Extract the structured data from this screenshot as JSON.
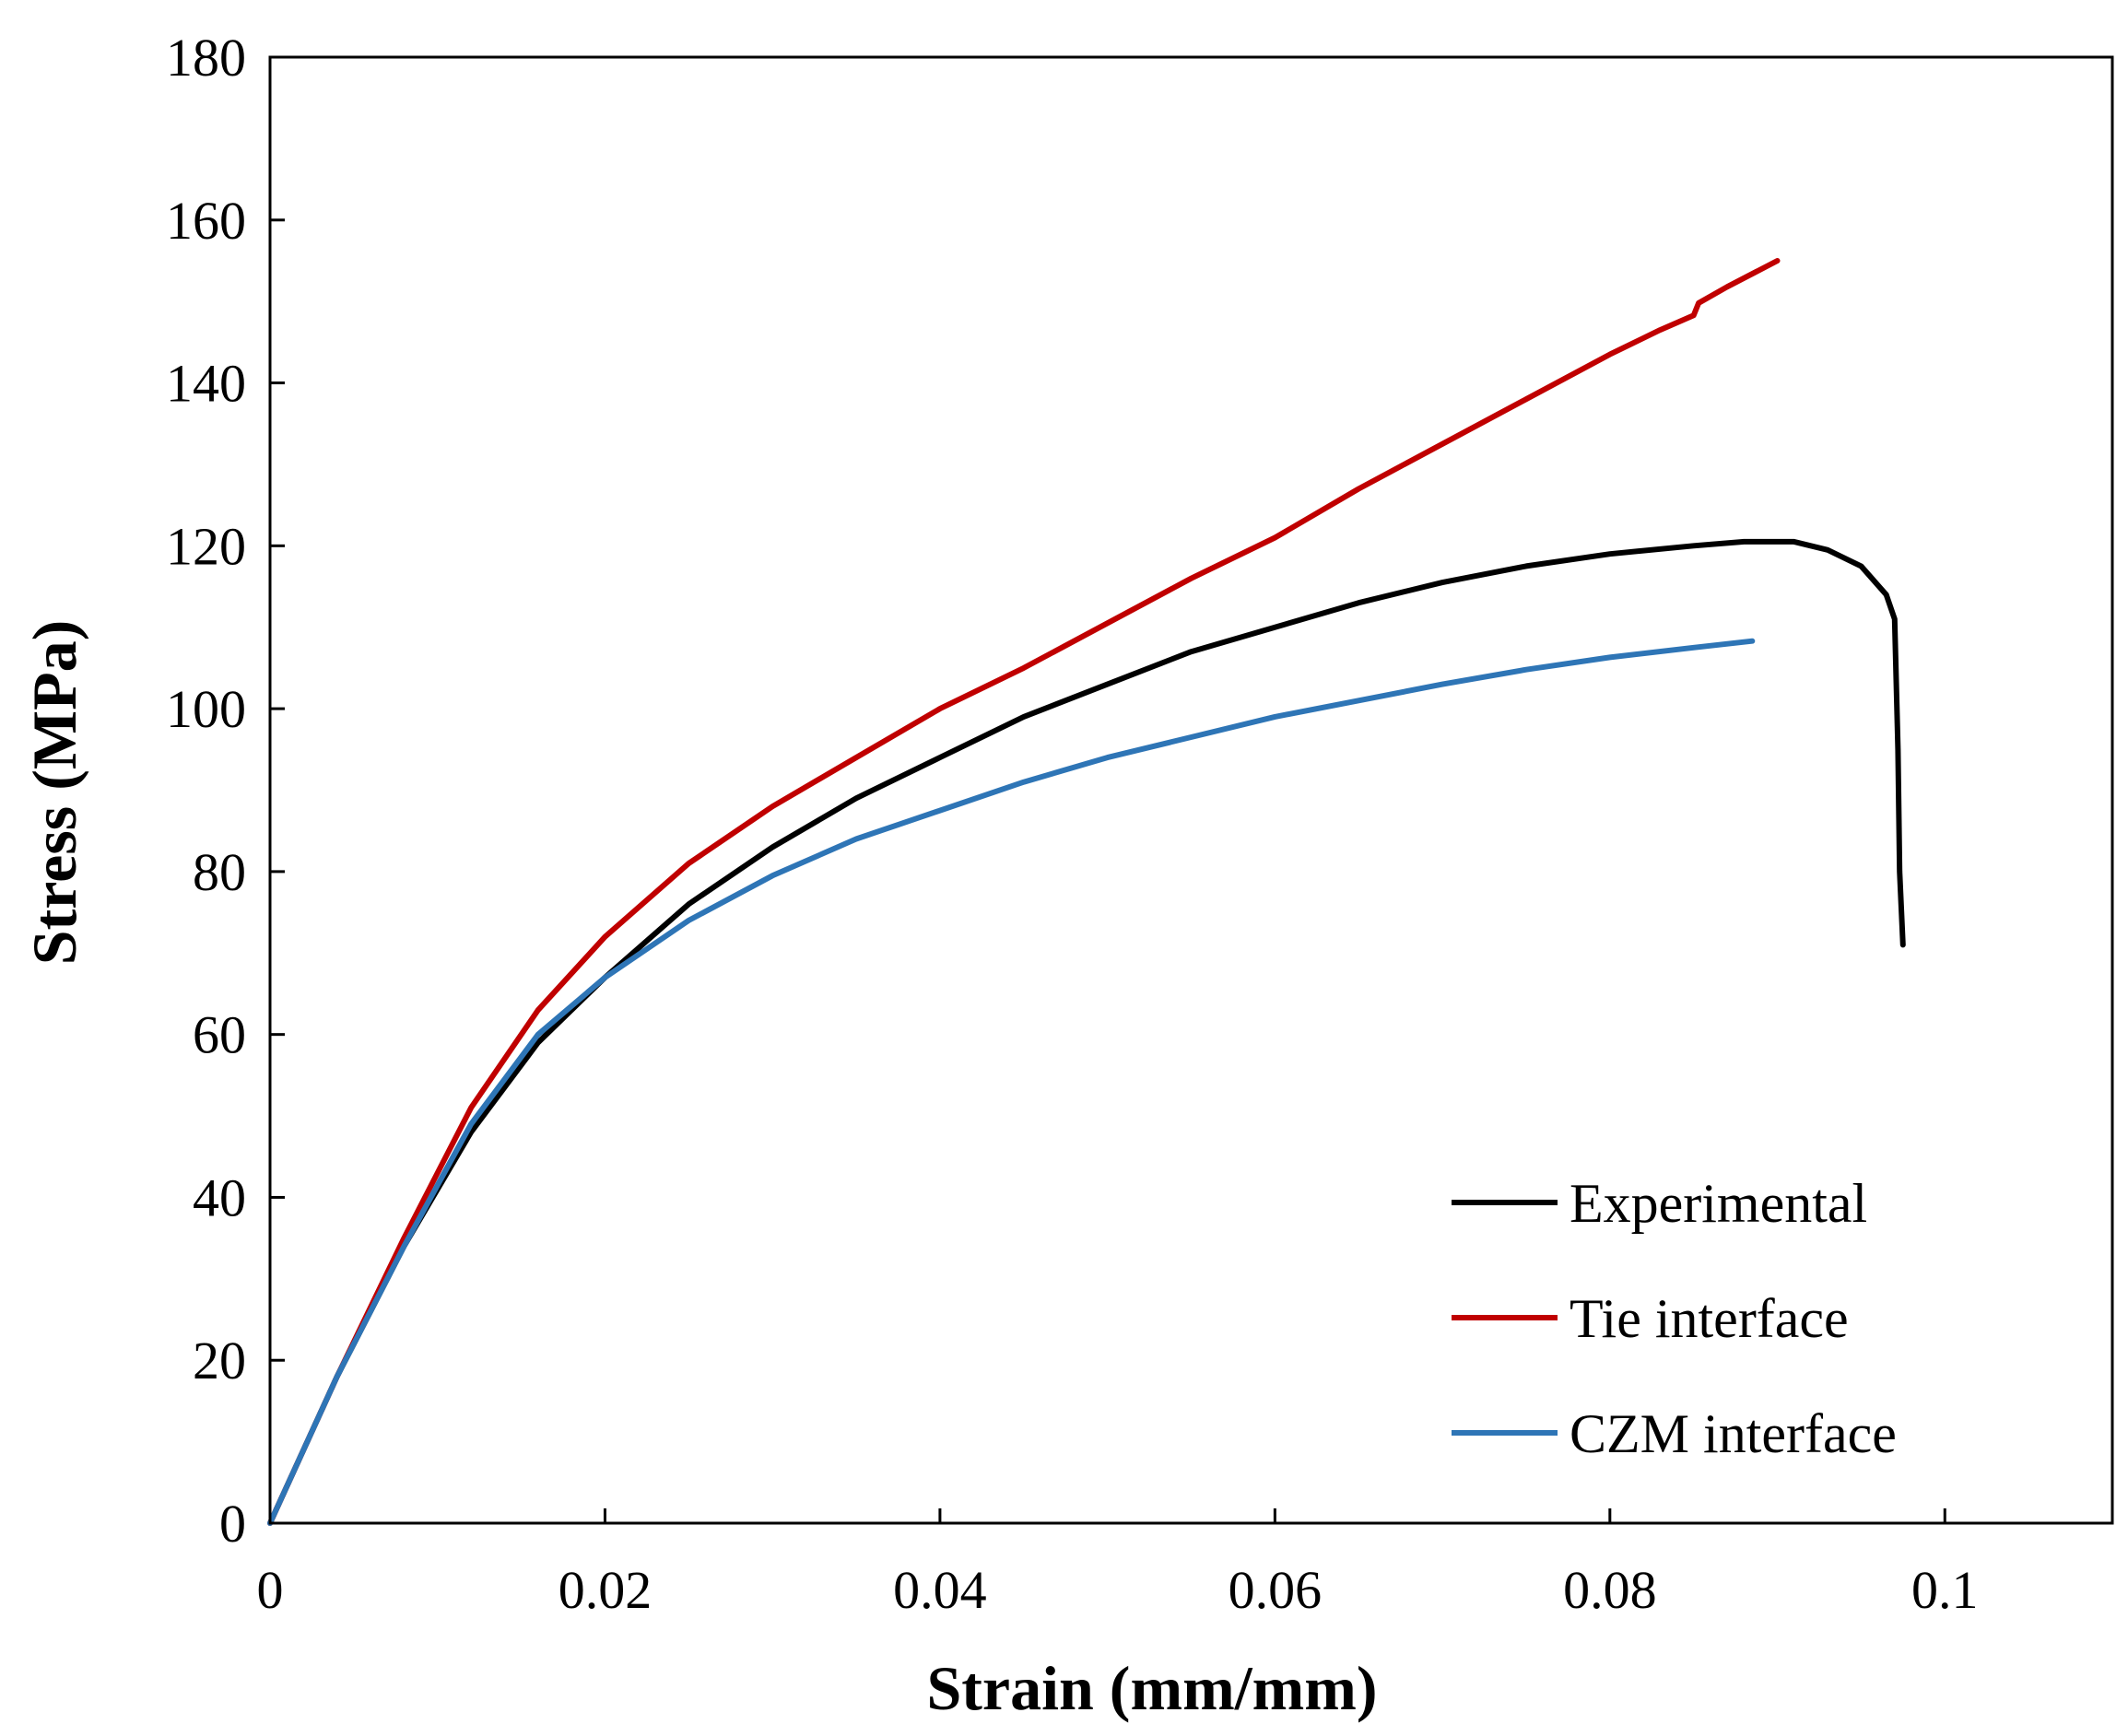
{
  "chart_data": {
    "type": "line",
    "title": "",
    "xlabel": "Strain (mm/mm)",
    "ylabel": "Stress (MPa)",
    "xlim": [
      0,
      0.11
    ],
    "ylim": [
      0,
      180
    ],
    "x_ticks": [
      0,
      0.02,
      0.04,
      0.06,
      0.08,
      0.1
    ],
    "x_tick_labels": [
      "0",
      "0.02",
      "0.04",
      "0.06",
      "0.08",
      "0.1"
    ],
    "y_ticks": [
      0,
      20,
      40,
      60,
      80,
      100,
      120,
      140,
      160,
      180
    ],
    "y_tick_labels": [
      "0",
      "20",
      "40",
      "60",
      "80",
      "100",
      "120",
      "140",
      "160",
      "180"
    ],
    "grid": false,
    "legend_position": "bottom-right",
    "series": [
      {
        "name": "Experimental",
        "color": "#000000",
        "x": [
          0,
          0.004,
          0.008,
          0.012,
          0.016,
          0.02,
          0.025,
          0.03,
          0.035,
          0.04,
          0.045,
          0.05,
          0.055,
          0.06,
          0.065,
          0.07,
          0.075,
          0.08,
          0.085,
          0.088,
          0.091,
          0.093,
          0.095,
          0.0965,
          0.097,
          0.0972,
          0.0973,
          0.0975
        ],
        "y": [
          0,
          18,
          34,
          48,
          59,
          67,
          76,
          83,
          89,
          94,
          99,
          103,
          107,
          110,
          113,
          115.5,
          117.5,
          119,
          120,
          120.5,
          120.5,
          119.5,
          117.5,
          114,
          111,
          95,
          80,
          71
        ]
      },
      {
        "name": "Tie interface",
        "color": "#c00000",
        "x": [
          0,
          0.004,
          0.008,
          0.012,
          0.016,
          0.02,
          0.025,
          0.03,
          0.035,
          0.04,
          0.045,
          0.05,
          0.055,
          0.06,
          0.065,
          0.07,
          0.075,
          0.08,
          0.083,
          0.085,
          0.0853,
          0.087,
          0.09
        ],
        "y": [
          0,
          18,
          35,
          51,
          63,
          72,
          81,
          88,
          94,
          100,
          105,
          110.5,
          116,
          121,
          127,
          132.5,
          138,
          143.5,
          146.5,
          148.3,
          149.8,
          151.8,
          155
        ]
      },
      {
        "name": "CZM interface",
        "color": "#2e75b6",
        "x": [
          0,
          0.004,
          0.008,
          0.012,
          0.016,
          0.02,
          0.025,
          0.03,
          0.035,
          0.04,
          0.045,
          0.05,
          0.055,
          0.06,
          0.065,
          0.07,
          0.075,
          0.08,
          0.085,
          0.0885
        ],
        "y": [
          0,
          18,
          34,
          49,
          60,
          67,
          74,
          79.5,
          84,
          87.5,
          91,
          94,
          96.5,
          99,
          101,
          103,
          104.8,
          106.3,
          107.5,
          108.3
        ]
      }
    ]
  }
}
